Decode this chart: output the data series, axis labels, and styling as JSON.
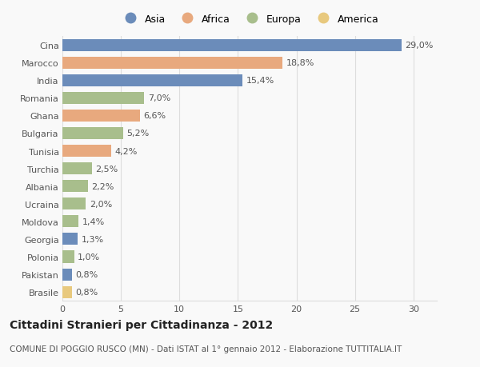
{
  "countries": [
    "Cina",
    "Marocco",
    "India",
    "Romania",
    "Ghana",
    "Bulgaria",
    "Tunisia",
    "Turchia",
    "Albania",
    "Ucraina",
    "Moldova",
    "Georgia",
    "Polonia",
    "Pakistan",
    "Brasile"
  ],
  "values": [
    29.0,
    18.8,
    15.4,
    7.0,
    6.6,
    5.2,
    4.2,
    2.5,
    2.2,
    2.0,
    1.4,
    1.3,
    1.0,
    0.8,
    0.8
  ],
  "labels": [
    "29,0%",
    "18,8%",
    "15,4%",
    "7,0%",
    "6,6%",
    "5,2%",
    "4,2%",
    "2,5%",
    "2,2%",
    "2,0%",
    "1,4%",
    "1,3%",
    "1,0%",
    "0,8%",
    "0,8%"
  ],
  "colors": [
    "#6b8cba",
    "#e8a97e",
    "#6b8cba",
    "#a8be8c",
    "#e8a97e",
    "#a8be8c",
    "#e8a97e",
    "#a8be8c",
    "#a8be8c",
    "#a8be8c",
    "#a8be8c",
    "#6b8cba",
    "#a8be8c",
    "#6b8cba",
    "#e8c97e"
  ],
  "legend_labels": [
    "Asia",
    "Africa",
    "Europa",
    "America"
  ],
  "legend_colors": [
    "#6b8cba",
    "#e8a97e",
    "#a8be8c",
    "#e8c97e"
  ],
  "title": "Cittadini Stranieri per Cittadinanza - 2012",
  "subtitle": "COMUNE DI POGGIO RUSCO (MN) - Dati ISTAT al 1° gennaio 2012 - Elaborazione TUTTITALIA.IT",
  "xlim": [
    0,
    32
  ],
  "xticks": [
    0,
    5,
    10,
    15,
    20,
    25,
    30
  ],
  "background_color": "#f9f9f9",
  "grid_color": "#dddddd",
  "bar_height": 0.68,
  "title_fontsize": 10,
  "subtitle_fontsize": 7.5,
  "label_fontsize": 8,
  "tick_fontsize": 8,
  "legend_fontsize": 9
}
